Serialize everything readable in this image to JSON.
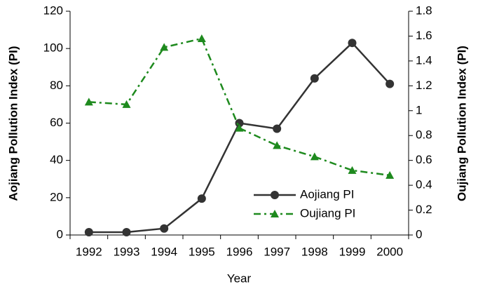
{
  "chart_data": {
    "type": "line",
    "xlabel": "Year",
    "ylabel": "Aojiang Pollution Index (PI)",
    "y2label": "Oujiang Pollution Index (PI)",
    "categories": [
      "1992",
      "1993",
      "1994",
      "1995",
      "1996",
      "1997",
      "1998",
      "1999",
      "2000"
    ],
    "series": [
      {
        "name": "Aojiang PI",
        "color": "#333333",
        "marker": "circle",
        "dash": "solid",
        "axis": "y",
        "values": [
          1.5,
          1.5,
          3.5,
          19.5,
          60,
          57,
          84,
          103,
          81
        ]
      },
      {
        "name": "Oujiang PI",
        "color": "#1e8a1e",
        "marker": "triangle",
        "dash": "dashdot",
        "axis": "y2",
        "values": [
          1.07,
          1.05,
          1.51,
          1.58,
          0.86,
          0.72,
          0.63,
          0.52,
          0.48
        ]
      }
    ],
    "ylim": [
      0,
      120
    ],
    "yticks": [
      0,
      20,
      40,
      60,
      80,
      100,
      120
    ],
    "y2lim": [
      0,
      1.8
    ],
    "y2ticks": [
      0,
      0.2,
      0.4,
      0.6,
      0.8,
      1,
      1.2,
      1.4,
      1.6,
      1.8
    ],
    "legend": "lower right",
    "grid": false
  }
}
